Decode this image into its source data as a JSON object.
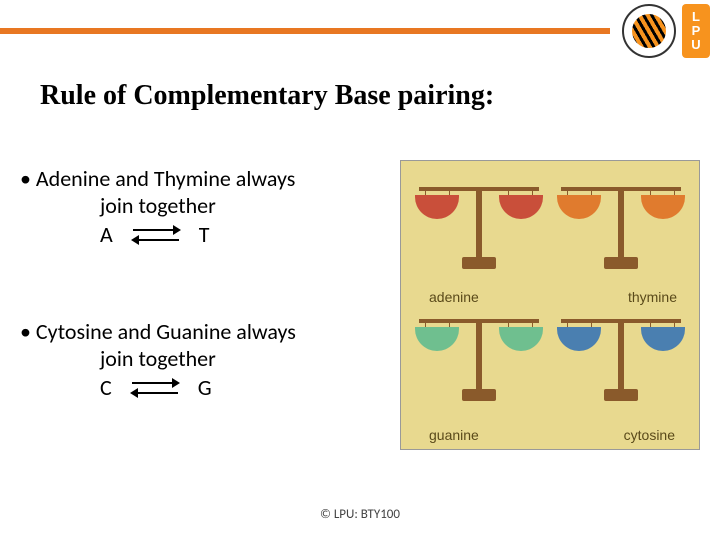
{
  "header": {
    "line_color": "#e87722",
    "badge_letters": [
      "L",
      "P",
      "U"
    ]
  },
  "title": "Rule of Complementary Base pairing:",
  "bullets": [
    {
      "line1": "• Adenine and Thymine always",
      "line2": "join together",
      "pair_left": "A",
      "pair_right": "T"
    },
    {
      "line1": "• Cytosine and Guanine always",
      "line2": "join together",
      "pair_left": "C",
      "pair_right": "G"
    }
  ],
  "figure": {
    "background": "#e8d98f",
    "labels": {
      "top_left": "adenine",
      "top_right": "thymine",
      "bottom_left": "guanine",
      "bottom_right": "cytosine"
    },
    "pan_colors": {
      "adenine": "#c94f3a",
      "thymine": "#e07b2e",
      "guanine": "#6fbf8f",
      "cytosine": "#4a7fb0"
    }
  },
  "footer": "© LPU: BTY100"
}
